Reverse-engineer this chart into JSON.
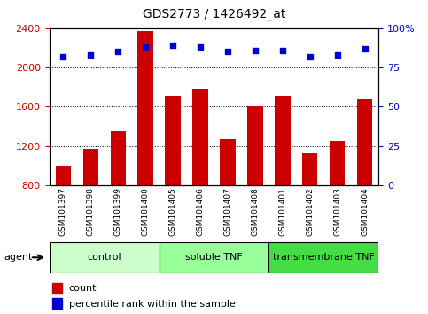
{
  "title": "GDS2773 / 1426492_at",
  "samples": [
    "GSM101397",
    "GSM101398",
    "GSM101399",
    "GSM101400",
    "GSM101405",
    "GSM101406",
    "GSM101407",
    "GSM101408",
    "GSM101401",
    "GSM101402",
    "GSM101403",
    "GSM101404"
  ],
  "counts": [
    1000,
    1170,
    1350,
    2370,
    1710,
    1780,
    1270,
    1600,
    1710,
    1130,
    1250,
    1680
  ],
  "percentiles": [
    82,
    83,
    85,
    88,
    89,
    88,
    85,
    86,
    86,
    82,
    83,
    87
  ],
  "bar_color": "#cc0000",
  "dot_color": "#0000cc",
  "ylim_left": [
    800,
    2400
  ],
  "ylim_right": [
    0,
    100
  ],
  "yticks_left": [
    800,
    1200,
    1600,
    2000,
    2400
  ],
  "yticks_right": [
    0,
    25,
    50,
    75,
    100
  ],
  "groups": [
    {
      "label": "control",
      "start": 0,
      "end": 4,
      "color": "#ccffcc"
    },
    {
      "label": "soluble TNF",
      "start": 4,
      "end": 8,
      "color": "#99ff99"
    },
    {
      "label": "transmembrane TNF",
      "start": 8,
      "end": 12,
      "color": "#44dd44"
    }
  ],
  "legend_count_label": "count",
  "legend_percentile_label": "percentile rank within the sample",
  "agent_label": "agent",
  "bar_width": 0.55
}
